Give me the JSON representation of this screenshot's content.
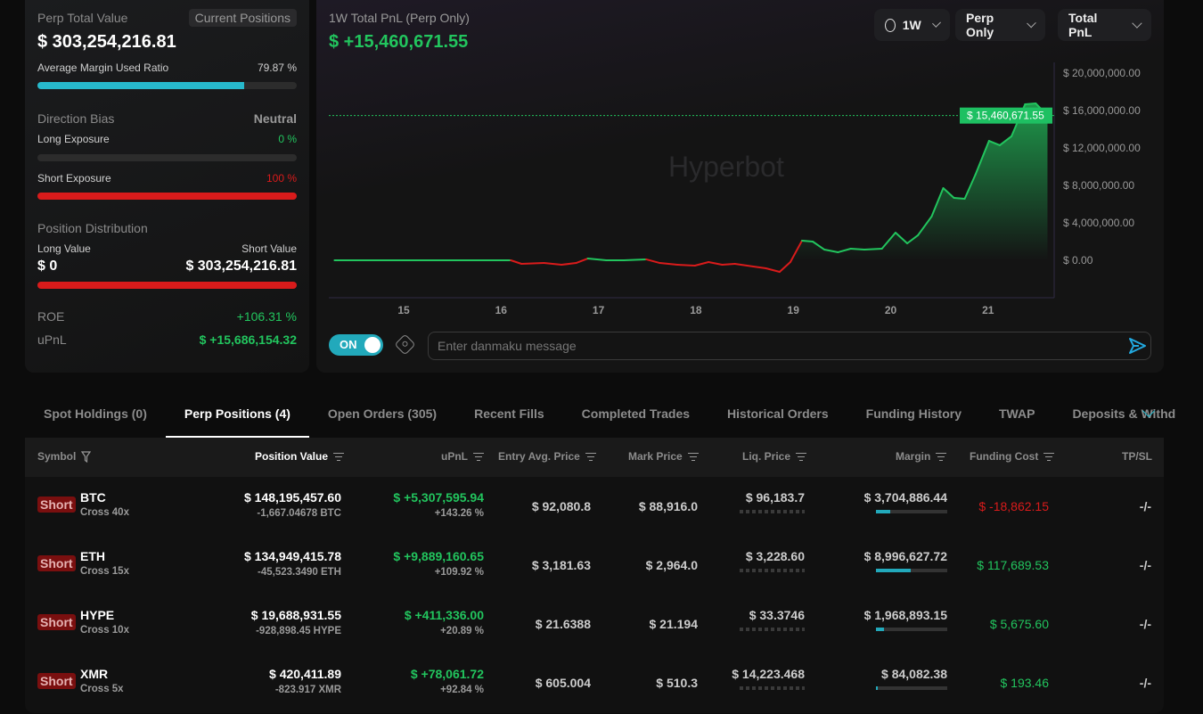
{
  "summary": {
    "title": "Perp Total Value",
    "positions_button": "Current Positions",
    "total": "$ 303,254,216.81",
    "margin_label": "Average Margin Used Ratio",
    "margin_value": "79.87 %",
    "margin_ratio": 0.7987,
    "bias_label": "Direction Bias",
    "bias_value": "Neutral",
    "long_exposure_label": "Long Exposure",
    "long_exposure_value": "0 %",
    "long_exposure_ratio": 0,
    "short_exposure_label": "Short Exposure",
    "short_exposure_value": "100 %",
    "short_exposure_ratio": 1,
    "distribution_label": "Position Distribution",
    "long_value_label": "Long Value",
    "long_value": "$ 0",
    "short_value_label": "Short Value",
    "short_value": "$ 303,254,216.81",
    "roe_label": "ROE",
    "roe_value": "+106.31 %",
    "upnl_label": "uPnL",
    "upnl_value": "$ +15,686,154.32"
  },
  "chart": {
    "title": "1W Total PnL (Perp Only)",
    "value": "$ +15,460,671.55",
    "watermark": "Hyperbot",
    "range_select": "1W",
    "scope_select": "Perp Only",
    "metric_select": "Total PnL",
    "current_label": "$ 15,460,671.55",
    "danmaku_toggle": "ON",
    "danmaku_placeholder": "Enter danmaku message"
  },
  "chart_data": {
    "type": "area",
    "ylim": [
      -4000000,
      20000000
    ],
    "y_ticks": [
      "$ 0.00",
      "$ 4,000,000.00",
      "$ 8,000,000.00",
      "$ 12,000,000.00",
      "$ 16,000,000.00",
      "$ 20,000,000.00"
    ],
    "x_ticks": [
      "15",
      "16",
      "17",
      "18",
      "19",
      "20",
      "21"
    ],
    "x": [
      14.29,
      16.1,
      16.21,
      16.44,
      16.62,
      16.77,
      16.89,
      17.08,
      17.26,
      17.49,
      17.63,
      17.81,
      17.99,
      18.13,
      18.27,
      18.4,
      18.59,
      18.72,
      18.86,
      18.97,
      19.09,
      19.2,
      19.32,
      19.46,
      19.59,
      19.73,
      19.91,
      20.05,
      20.17,
      20.28,
      20.42,
      20.54,
      20.65,
      20.76,
      20.87,
      21.01,
      21.12,
      21.24,
      21.38,
      21.49,
      21.61
    ],
    "y": [
      0,
      0,
      -380000,
      -290000,
      -480000,
      -290000,
      190000,
      0,
      0,
      100000,
      -290000,
      -480000,
      -570000,
      -190000,
      -480000,
      -380000,
      -670000,
      -860000,
      -1240000,
      -190000,
      2100000,
      2000000,
      1140000,
      860000,
      1240000,
      1140000,
      1240000,
      2950000,
      1810000,
      2670000,
      4670000,
      7710000,
      6670000,
      6570000,
      9140000,
      12760000,
      12290000,
      13240000,
      16670000,
      16760000,
      15460671.55
    ],
    "positive_color": "#22c55e",
    "negative_color": "#d91b1b"
  },
  "tabs": [
    "Spot Holdings (0)",
    "Perp Positions (4)",
    "Open Orders (305)",
    "Recent Fills",
    "Completed Trades",
    "Historical Orders",
    "Funding History",
    "TWAP",
    "Deposits & Withd"
  ],
  "table": {
    "headers": {
      "symbol": "Symbol",
      "position_value": "Position Value",
      "upnl": "uPnL",
      "entry": "Entry Avg. Price",
      "mark": "Mark Price",
      "liq": "Liq. Price",
      "margin": "Margin",
      "funding": "Funding Cost",
      "tpsl": "TP/SL"
    },
    "rows": [
      {
        "side": "Short",
        "symbol": "BTC",
        "leverage": "Cross 40x",
        "value": "$ 148,195,457.60",
        "size": "-1,667.04678 BTC",
        "upnl": "$ +5,307,595.94",
        "upnl_pct": "+143.26 %",
        "entry": "$ 92,080.8",
        "mark": "$ 88,916.0",
        "liq": "$ 96,183.7",
        "margin": "$ 3,704,886.44",
        "margin_ratio": 0.2,
        "funding": "$ -18,862.15",
        "funding_negative": true,
        "tpsl": "-/-"
      },
      {
        "side": "Short",
        "symbol": "ETH",
        "leverage": "Cross 15x",
        "value": "$ 134,949,415.78",
        "size": "-45,523.3490 ETH",
        "upnl": "$ +9,889,160.65",
        "upnl_pct": "+109.92 %",
        "entry": "$ 3,181.63",
        "mark": "$ 2,964.0",
        "liq": "$ 3,228.60",
        "margin": "$ 8,996,627.72",
        "margin_ratio": 0.49,
        "funding": "$ 117,689.53",
        "funding_negative": false,
        "tpsl": "-/-"
      },
      {
        "side": "Short",
        "symbol": "HYPE",
        "leverage": "Cross 10x",
        "value": "$ 19,688,931.55",
        "size": "-928,898.45 HYPE",
        "upnl": "$ +411,336.00",
        "upnl_pct": "+20.89 %",
        "entry": "$ 21.6388",
        "mark": "$ 21.194",
        "liq": "$ 33.3746",
        "margin": "$ 1,968,893.15",
        "margin_ratio": 0.11,
        "funding": "$ 5,675.60",
        "funding_negative": false,
        "tpsl": "-/-"
      },
      {
        "side": "Short",
        "symbol": "XMR",
        "leverage": "Cross 5x",
        "value": "$ 420,411.89",
        "size": "-823.917 XMR",
        "upnl": "$ +78,061.72",
        "upnl_pct": "+92.84 %",
        "entry": "$ 605.004",
        "mark": "$ 510.3",
        "liq": "$ 14,223.468",
        "margin": "$ 84,082.38",
        "margin_ratio": 0.01,
        "funding": "$ 193.46",
        "funding_negative": false,
        "tpsl": "-/-"
      }
    ]
  }
}
